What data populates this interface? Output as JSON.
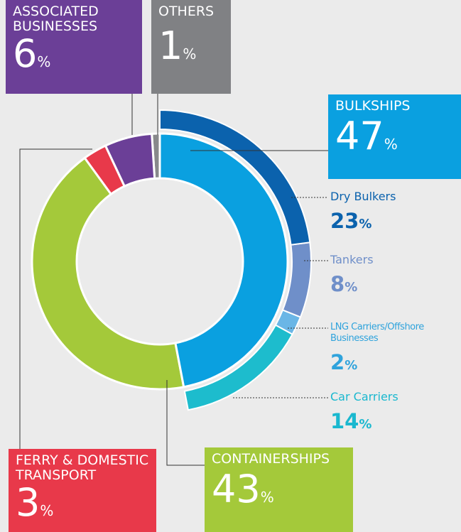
{
  "chart_data": {
    "type": "donut",
    "unit": "%",
    "categories": [
      "BULKSHIPS",
      "CONTAINERSHIPS",
      "FERRY & DOMESTIC TRANSPORT",
      "ASSOCIATED BUSINESSES",
      "OTHERS"
    ],
    "values": [
      47,
      43,
      3,
      6,
      1
    ],
    "colors": [
      "#0aa0e0",
      "#a4c93a",
      "#e8394a",
      "#6b3f97",
      "#88898b"
    ],
    "breakdown": {
      "categories": [
        "Dry Bulkers",
        "Tankers",
        "LNG Carriers/Offshore Businesses",
        "Car Carriers"
      ],
      "values": [
        23,
        8,
        2,
        14
      ],
      "colors": [
        "#0b62ad",
        "#6f8fc9",
        "#6ab6e6",
        "#1dbccd"
      ]
    }
  }
}
